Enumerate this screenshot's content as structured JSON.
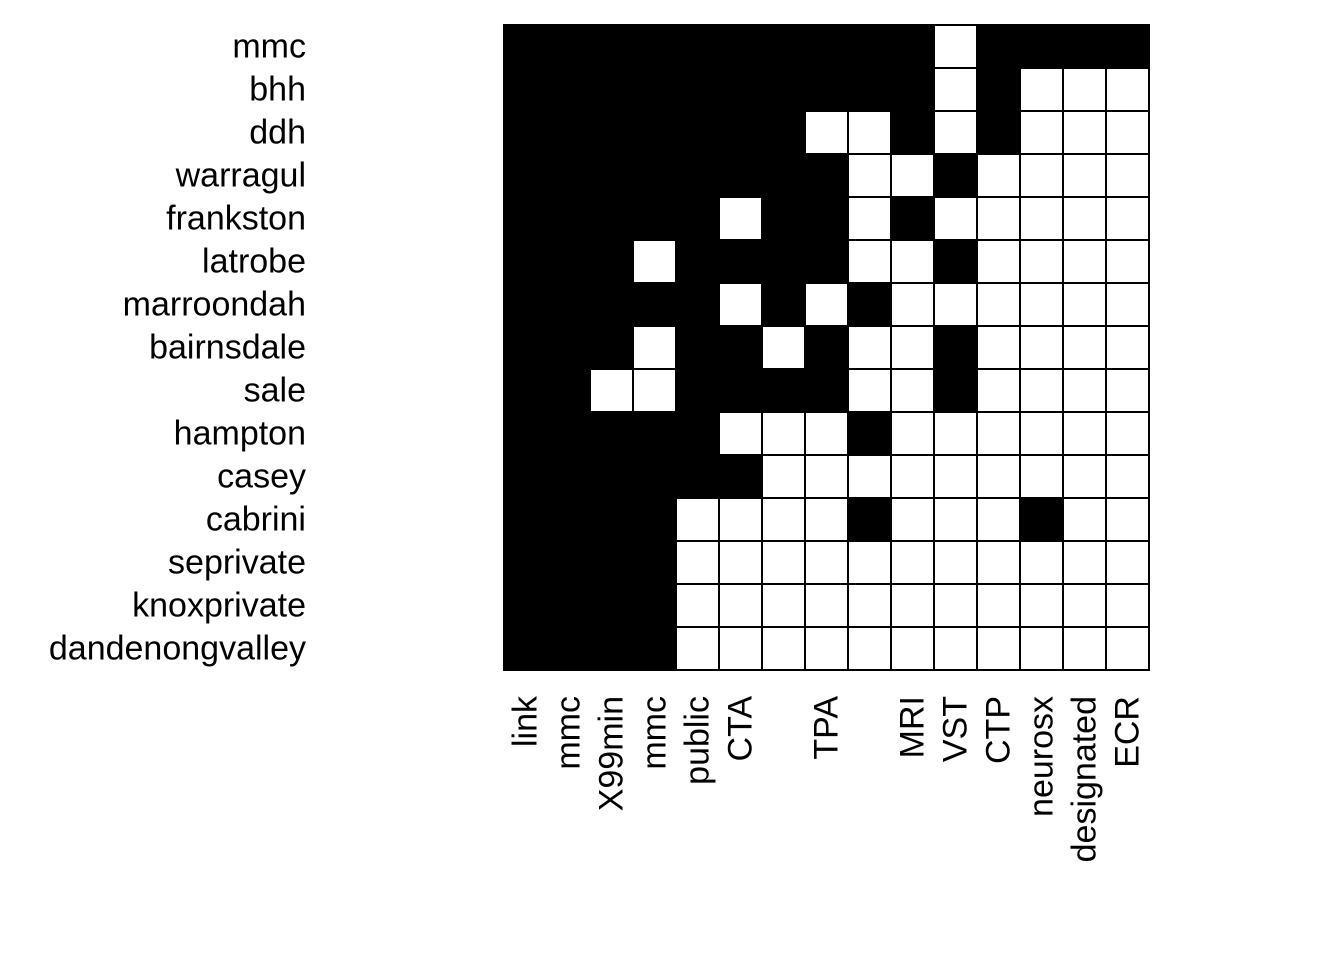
{
  "chart_data": {
    "type": "heatmap",
    "rows": [
      "mmc",
      "bhh",
      "ddh",
      "warragul",
      "frankston",
      "latrobe",
      "marroondah",
      "bairnsdale",
      "sale",
      "hampton",
      "casey",
      "cabrini",
      "seprivate",
      "knoxprivate",
      "dandenongvalley"
    ],
    "columns": [
      "link",
      "mmc",
      "X99min",
      "mmc",
      "public",
      "CTA",
      "",
      "TPA",
      "",
      "MRI",
      "VST",
      "CTP",
      "neurosx",
      "designated",
      "ECR"
    ],
    "values": [
      [
        1,
        1,
        1,
        1,
        1,
        1,
        1,
        1,
        1,
        1,
        0,
        1,
        1,
        1,
        1
      ],
      [
        1,
        1,
        1,
        1,
        1,
        1,
        1,
        1,
        1,
        1,
        0,
        1,
        0,
        0,
        0
      ],
      [
        1,
        1,
        1,
        1,
        1,
        1,
        1,
        0,
        0,
        1,
        0,
        1,
        0,
        0,
        0
      ],
      [
        1,
        1,
        1,
        1,
        1,
        1,
        1,
        1,
        0,
        0,
        1,
        0,
        0,
        0,
        0
      ],
      [
        1,
        1,
        1,
        1,
        1,
        0,
        1,
        1,
        0,
        1,
        0,
        0,
        0,
        0,
        0
      ],
      [
        1,
        1,
        1,
        0,
        1,
        1,
        1,
        1,
        0,
        0,
        1,
        0,
        0,
        0,
        0
      ],
      [
        1,
        1,
        1,
        1,
        1,
        0,
        1,
        0,
        1,
        0,
        0,
        0,
        0,
        0,
        0
      ],
      [
        1,
        1,
        1,
        0,
        1,
        1,
        0,
        1,
        0,
        0,
        1,
        0,
        0,
        0,
        0
      ],
      [
        1,
        1,
        0,
        0,
        1,
        1,
        1,
        1,
        0,
        0,
        1,
        0,
        0,
        0,
        0
      ],
      [
        1,
        1,
        1,
        1,
        1,
        0,
        0,
        0,
        1,
        0,
        0,
        0,
        0,
        0,
        0
      ],
      [
        1,
        1,
        1,
        1,
        1,
        1,
        0,
        0,
        0,
        0,
        0,
        0,
        0,
        0,
        0
      ],
      [
        1,
        1,
        1,
        1,
        0,
        0,
        0,
        0,
        1,
        0,
        0,
        0,
        1,
        0,
        0
      ],
      [
        1,
        1,
        1,
        1,
        0,
        0,
        0,
        0,
        0,
        0,
        0,
        0,
        0,
        0,
        0
      ],
      [
        1,
        1,
        1,
        1,
        0,
        0,
        0,
        0,
        0,
        0,
        0,
        0,
        0,
        0,
        0
      ],
      [
        1,
        1,
        1,
        1,
        0,
        0,
        0,
        0,
        0,
        0,
        0,
        0,
        0,
        0,
        0
      ]
    ],
    "colors": {
      "present": "#000000",
      "absent": "#ffffff"
    },
    "grid": true,
    "legend": "none",
    "title": "",
    "xlabel": "",
    "ylabel": ""
  }
}
